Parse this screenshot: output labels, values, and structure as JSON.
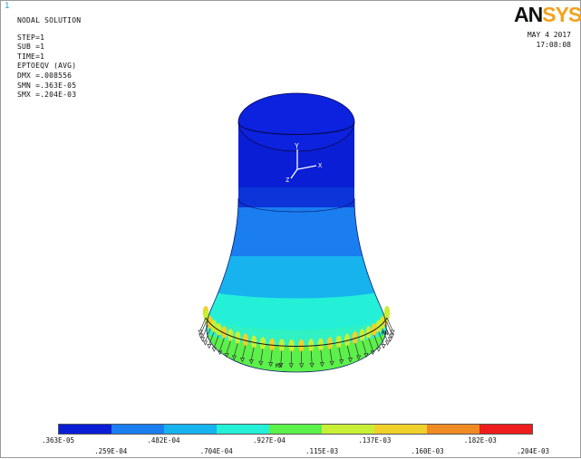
{
  "window_number": "1",
  "header": {
    "title": "NODAL SOLUTION",
    "lines": [
      "STEP=1",
      "SUB =1",
      "TIME=1"
    ],
    "quantity": "EPTOEQV   (AVG)",
    "stats": [
      "DMX =.008556",
      "SMN =.363E-05",
      "SMX =.204E-03"
    ]
  },
  "brand": {
    "logo_left": "AN",
    "logo_right": "SYS"
  },
  "timestamp": {
    "date": "MAY  4 2017",
    "time": "17:08:08"
  },
  "axis_triad": {
    "y_label": "Y",
    "x_label": "X",
    "z_label": "Z"
  },
  "model_labels": {
    "mx": "MX",
    "mn": "MN"
  },
  "legend": {
    "colors": [
      "#0a1ed6",
      "#1a7df0",
      "#17b3ee",
      "#24f0d8",
      "#5cf04a",
      "#c8ef36",
      "#f0d02a",
      "#f08a22",
      "#ee1c1c"
    ],
    "ticks": [
      ".363E-05",
      ".259E-04",
      ".482E-04",
      ".704E-04",
      ".927E-04",
      ".115E-03",
      ".137E-03",
      ".160E-03",
      ".182E-03",
      ".204E-03"
    ]
  }
}
